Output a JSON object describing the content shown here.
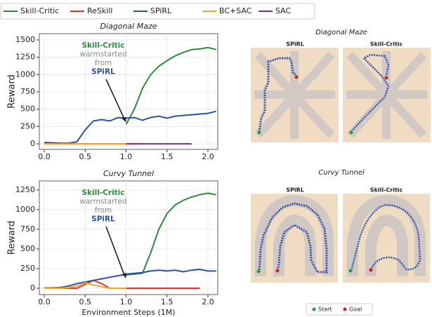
{
  "chart_data": [
    {
      "type": "line",
      "title": "Diagonal Maze",
      "ylabel": "Reward",
      "x": [
        0,
        0.1,
        0.2,
        0.3,
        0.4,
        0.5,
        0.6,
        0.7,
        0.8,
        0.9,
        1.0,
        1.1,
        1.2,
        1.3,
        1.4,
        1.5,
        1.6,
        1.7,
        1.8,
        1.9,
        2.0,
        2.1
      ],
      "series": [
        {
          "name": "Skill-Critic",
          "color": "#2e8b3e",
          "values": [
            null,
            null,
            null,
            null,
            null,
            null,
            null,
            null,
            null,
            null,
            280,
            500,
            800,
            1000,
            1120,
            1200,
            1270,
            1320,
            1360,
            1370,
            1390,
            1360
          ]
        },
        {
          "name": "ReSkill",
          "color": "#e8302a",
          "values": [
            0,
            0,
            0,
            0,
            0,
            0,
            0,
            0,
            0,
            0,
            0,
            0,
            0,
            null,
            null,
            null,
            null,
            null,
            null,
            null,
            null,
            null
          ]
        },
        {
          "name": "SPiRL",
          "color": "#2c4fa8",
          "values": [
            20,
            15,
            10,
            10,
            30,
            200,
            330,
            350,
            330,
            380,
            370,
            380,
            340,
            380,
            400,
            370,
            400,
            410,
            420,
            430,
            440,
            470
          ]
        },
        {
          "name": "BC+SAC",
          "color": "#f5a623",
          "values": [
            0,
            0,
            0,
            0,
            0,
            0,
            0,
            0,
            0,
            0,
            0,
            null,
            null,
            null,
            null,
            null,
            null,
            null,
            null,
            null,
            null,
            null
          ]
        },
        {
          "name": "SAC",
          "color": "#7b2d8e",
          "values": [
            null,
            null,
            null,
            null,
            null,
            null,
            null,
            null,
            null,
            null,
            0,
            0,
            0,
            0,
            0,
            0,
            0,
            0,
            0,
            null,
            null,
            null
          ]
        }
      ],
      "xlim": [
        -0.06,
        2.12
      ],
      "ylim": [
        -80,
        1590
      ],
      "xticks": [
        {
          "value": 0,
          "label": "0.0"
        },
        {
          "value": 0.5,
          "label": "0.5"
        },
        {
          "value": 1,
          "label": "1.0"
        },
        {
          "value": 1.5,
          "label": "1.5"
        },
        {
          "value": 2,
          "label": "2.0"
        }
      ],
      "yticks": [
        0,
        250,
        500,
        750,
        1000,
        1250,
        1500
      ],
      "grid": true,
      "annotations": [
        "Skill-Critic",
        "warmstarted",
        "from",
        "SPiRL"
      ]
    },
    {
      "type": "line",
      "title": "Curvy Tunnel",
      "ylabel": "Reward",
      "xlabel": "Environment Steps (1M)",
      "x": [
        0,
        0.1,
        0.2,
        0.3,
        0.4,
        0.5,
        0.6,
        0.7,
        0.8,
        0.9,
        1.0,
        1.1,
        1.2,
        1.3,
        1.4,
        1.5,
        1.6,
        1.7,
        1.8,
        1.9,
        2.0,
        2.1
      ],
      "series": [
        {
          "name": "Skill-Critic",
          "color": "#2e8b3e",
          "values": [
            null,
            null,
            null,
            null,
            null,
            null,
            null,
            null,
            null,
            null,
            170,
            180,
            190,
            450,
            750,
            950,
            1060,
            1120,
            1160,
            1190,
            1210,
            1190
          ]
        },
        {
          "name": "ReSkill",
          "color": "#e8302a",
          "values": [
            0,
            0,
            0,
            0,
            0,
            50,
            100,
            60,
            0,
            0,
            0,
            0,
            0,
            0,
            0,
            0,
            0,
            0,
            0,
            0,
            null,
            null
          ]
        },
        {
          "name": "SPiRL",
          "color": "#2c4fa8",
          "values": [
            5,
            5,
            10,
            30,
            60,
            80,
            100,
            120,
            140,
            160,
            180,
            190,
            200,
            220,
            230,
            220,
            230,
            210,
            230,
            240,
            220,
            220
          ]
        },
        {
          "name": "BC+SAC",
          "color": "#f5a623",
          "values": [
            0,
            0,
            0,
            10,
            30,
            70,
            40,
            20,
            0,
            0,
            0,
            null,
            null,
            null,
            null,
            null,
            null,
            null,
            null,
            null,
            null,
            null
          ]
        }
      ],
      "xlim": [
        -0.06,
        2.12
      ],
      "ylim": [
        -80,
        1365
      ],
      "xticks": [
        {
          "value": 0,
          "label": "0.0"
        },
        {
          "value": 0.5,
          "label": "0.5"
        },
        {
          "value": 1,
          "label": "1.0"
        },
        {
          "value": 1.5,
          "label": "1.5"
        },
        {
          "value": 2,
          "label": "2.0"
        }
      ],
      "yticks": [
        0,
        250,
        500,
        750,
        1000,
        1250
      ],
      "grid": true,
      "annotations": [
        "Skill-Critic",
        "warmstarted",
        "from",
        "SPiRL"
      ]
    }
  ],
  "mazes": [
    {
      "title": "Diagonal Maze",
      "panels": [
        "SPiRL",
        "Skill-Critic"
      ]
    },
    {
      "title": "Curvy Tunnel",
      "panels": [
        "SPiRL",
        "Skill-Critic"
      ]
    }
  ],
  "maze_legend": [
    "Start",
    "Goal"
  ]
}
